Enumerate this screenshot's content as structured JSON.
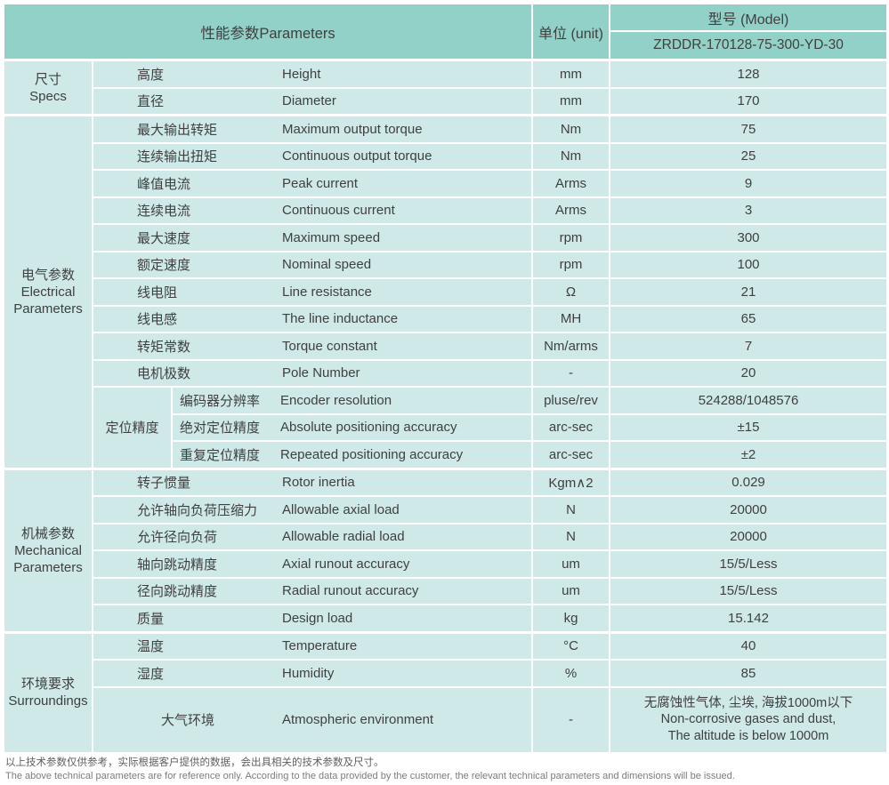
{
  "colors": {
    "header_background": "#92d1c7",
    "cell_background": "#cee9e8",
    "grid_lines": "#ffffff",
    "text": "#404040"
  },
  "table": {
    "header": {
      "parameters_label": "性能参数Parameters",
      "unit_label": "单位 (unit)",
      "model_label": "型号 (Model)",
      "model_value": "ZRDDR-170128-75-300-YD-30"
    },
    "sections": [
      {
        "group_cn": "尺寸",
        "group_en": "Specs",
        "rows": [
          {
            "cn": "高度",
            "en": "Height",
            "unit": "mm",
            "value": "128"
          },
          {
            "cn": "直径",
            "en": "Diameter",
            "unit": "mm",
            "value": "170"
          }
        ]
      },
      {
        "group_cn": "电气参数",
        "group_en": "Electrical Parameters",
        "rows": [
          {
            "cn": "最大输出转矩",
            "en": "Maximum output torque",
            "unit": "Nm",
            "value": "75"
          },
          {
            "cn": "连续输出扭矩",
            "en": "Continuous output torque",
            "unit": "Nm",
            "value": "25"
          },
          {
            "cn": "峰值电流",
            "en": "Peak current",
            "unit": "Arms",
            "value": "9"
          },
          {
            "cn": "连续电流",
            "en": "Continuous current",
            "unit": "Arms",
            "value": "3"
          },
          {
            "cn": "最大速度",
            "en": "Maximum speed",
            "unit": "rpm",
            "value": "300"
          },
          {
            "cn": "额定速度",
            "en": "Nominal speed",
            "unit": "rpm",
            "value": "100"
          },
          {
            "cn": "线电阻",
            "en": "Line resistance",
            "unit": "Ω",
            "value": "21"
          },
          {
            "cn": "线电感",
            "en": "The line inductance",
            "unit": "MH",
            "value": "65"
          },
          {
            "cn": "转矩常数",
            "en": "Torque constant",
            "unit": "Nm/arms",
            "value": "7"
          },
          {
            "cn": "电机极数",
            "en": "Pole Number",
            "unit": "-",
            "value": "20"
          }
        ],
        "subgroup": {
          "label": "定位精度",
          "rows": [
            {
              "cn": "编码器分辨率",
              "en": "Encoder resolution",
              "unit": "pluse/rev",
              "value": "524288/1048576"
            },
            {
              "cn": "绝对定位精度",
              "en": "Absolute positioning accuracy",
              "unit": "arc-sec",
              "value": "±15"
            },
            {
              "cn": "重复定位精度",
              "en": "Repeated positioning accuracy",
              "unit": "arc-sec",
              "value": "±2"
            }
          ]
        }
      },
      {
        "group_cn": "机械参数",
        "group_en": "Mechanical Parameters",
        "rows": [
          {
            "cn": "转子惯量",
            "en": "Rotor inertia",
            "unit": "Kgm∧2",
            "value": "0.029"
          },
          {
            "cn": "允许轴向负荷压缩力",
            "en": "Allowable axial load",
            "unit": "N",
            "value": "20000"
          },
          {
            "cn": "允许径向负荷",
            "en": "Allowable radial load",
            "unit": "N",
            "value": "20000"
          },
          {
            "cn": "轴向跳动精度",
            "en": "Axial runout accuracy",
            "unit": "um",
            "value": "15/5/Less"
          },
          {
            "cn": "径向跳动精度",
            "en": "Radial runout accuracy",
            "unit": "um",
            "value": "15/5/Less"
          },
          {
            "cn": "质量",
            "en": "Design load",
            "unit": "kg",
            "value": "15.142"
          }
        ]
      },
      {
        "group_cn": "环境要求",
        "group_en": "Surroundings",
        "rows": [
          {
            "cn": "温度",
            "en": "Temperature",
            "unit": "°C",
            "value": "40"
          },
          {
            "cn": "湿度",
            "en": "Humidity",
            "unit": "%",
            "value": "85"
          }
        ],
        "atmospheric": {
          "cn": "大气环境",
          "en": "Atmospheric environment",
          "unit": "-",
          "value_lines": [
            "无腐蚀性气体, 尘埃, 海拔1000m以下",
            "Non-corrosive gases and dust,",
            "The altitude is below 1000m"
          ]
        }
      }
    ]
  },
  "footer": {
    "line_cn": "以上技术参数仅供参考，实际根据客户提供的数据，会出具相关的技术参数及尺寸。",
    "line_en": "The above technical parameters are for reference only. According to the data provided by the customer, the relevant technical parameters and dimensions will be issued."
  }
}
